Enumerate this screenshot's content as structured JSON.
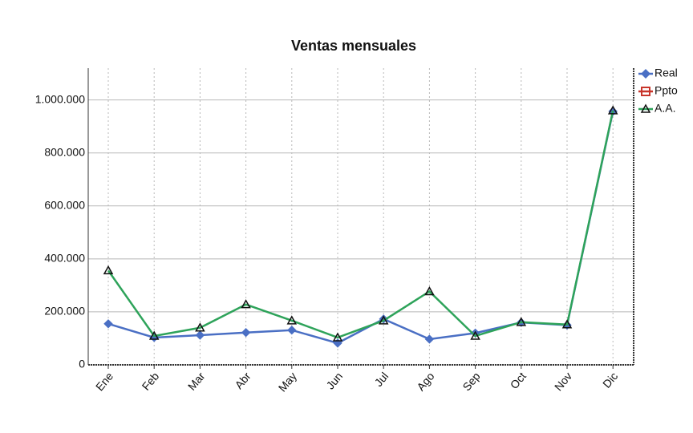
{
  "chart_data": {
    "type": "line",
    "title": "Ventas mensuales",
    "categories": [
      "Ene",
      "Feb",
      "Mar",
      "Abr",
      "May",
      "Jun",
      "Jul",
      "Ago",
      "Sep",
      "Oct",
      "Nov",
      "Dic"
    ],
    "series": [
      {
        "name": "Real",
        "color": "#4a6fc4",
        "marker": "diamond",
        "values": [
          155000,
          103000,
          112000,
          122000,
          131000,
          82000,
          173000,
          97000,
          120000,
          160000,
          150000,
          957000
        ]
      },
      {
        "name": "Ppto",
        "color": "#c8352b",
        "marker": "square",
        "values": [
          null,
          null,
          null,
          null,
          null,
          null,
          null,
          null,
          null,
          null,
          null,
          null
        ]
      },
      {
        "name": "A.A.",
        "color": "#2ea35a",
        "marker": "triangle",
        "values": [
          356000,
          109000,
          140000,
          228000,
          167000,
          103000,
          167000,
          277000,
          109000,
          161000,
          152000,
          960000
        ]
      }
    ],
    "ylim": [
      0,
      1120000
    ],
    "yticks": [
      0,
      {
        "value": 200000,
        "label": "200.000"
      },
      {
        "value": 400000,
        "label": "400.000"
      },
      {
        "value": 600000,
        "label": "600.000"
      },
      {
        "value": 800000,
        "label": "800.000"
      },
      {
        "value": 1000000,
        "label": "1.000.000"
      }
    ],
    "grid": true,
    "legend": "top-right"
  }
}
